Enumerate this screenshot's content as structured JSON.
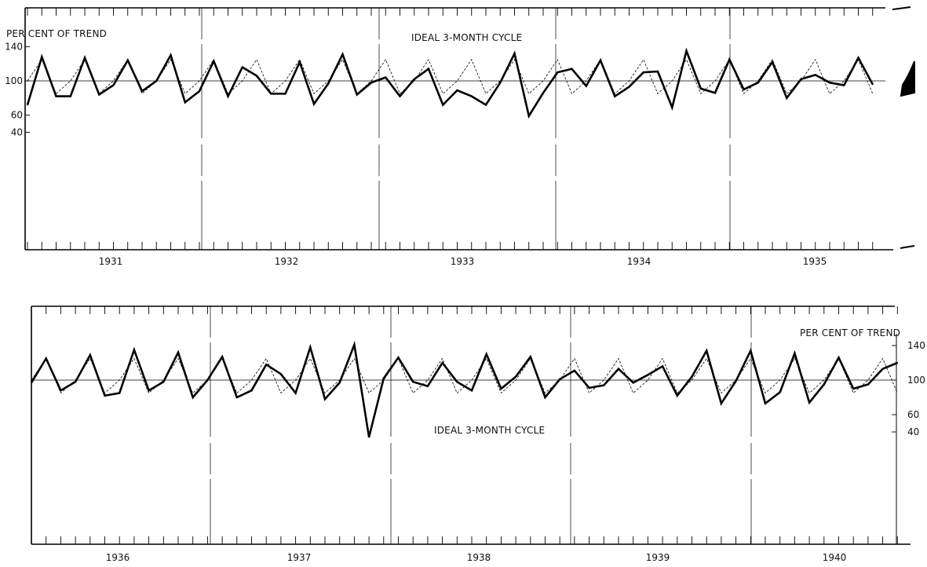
{
  "chart_data": [
    {
      "type": "line",
      "panel": "top",
      "ylabel": "PER CENT OF TREND",
      "annotation": "IDEAL 3-MONTH CYCLE",
      "y_ticks": [
        "140",
        "100",
        "60",
        "40"
      ],
      "year_labels": [
        "1931",
        "1932",
        "1933",
        "1934",
        "1935"
      ],
      "ylim": [
        40,
        140
      ],
      "series": [
        {
          "name": "",
          "style": "actual",
          "values": [
            72,
            128,
            82,
            82,
            127,
            84,
            95,
            124,
            88,
            100,
            130,
            75,
            88,
            123,
            82,
            116,
            106,
            85,
            85,
            122,
            73,
            97,
            131,
            84,
            98,
            104,
            82,
            102,
            114,
            72,
            89,
            82,
            72,
            98,
            132,
            59,
            86,
            110,
            114,
            94,
            124,
            82,
            93,
            110,
            111,
            69,
            135,
            91,
            86,
            125,
            90,
            98,
            122,
            80,
            102,
            107,
            98,
            95,
            127,
            96
          ]
        },
        {
          "name": "",
          "style": "ideal",
          "values": [
            100,
            125,
            85,
            100,
            125,
            85,
            100,
            125,
            85,
            100,
            125,
            85,
            100,
            125,
            85,
            100,
            125,
            85,
            100,
            125,
            85,
            100,
            125,
            85,
            100,
            125,
            85,
            100,
            125,
            85,
            100,
            125,
            85,
            100,
            125,
            85,
            100,
            125,
            85,
            100,
            125,
            85,
            100,
            125,
            85,
            100,
            125,
            85,
            100,
            125,
            85,
            100,
            125,
            85,
            100,
            125,
            85,
            100,
            125,
            85
          ]
        }
      ]
    },
    {
      "type": "line",
      "panel": "bottom",
      "ylabel": "PER CENT OF TREND",
      "annotation": "IDEAL 3-MONTH CYCLE",
      "y_ticks": [
        "140",
        "100",
        "60",
        "40"
      ],
      "year_labels": [
        "1936",
        "1937",
        "1938",
        "1939",
        "1940"
      ],
      "ylim": [
        40,
        140
      ],
      "series": [
        {
          "name": "",
          "style": "actual",
          "values": [
            97,
            125,
            88,
            98,
            129,
            82,
            85,
            135,
            88,
            98,
            132,
            80,
            100,
            127,
            80,
            88,
            118,
            107,
            85,
            138,
            78,
            97,
            141,
            34,
            102,
            126,
            98,
            93,
            120,
            98,
            88,
            130,
            90,
            104,
            127,
            80,
            101,
            111,
            91,
            94,
            113,
            97,
            106,
            116,
            82,
            104,
            134,
            73,
            99,
            134,
            73,
            86,
            131,
            74,
            95,
            126,
            90,
            95,
            113,
            120
          ]
        },
        {
          "name": "",
          "style": "ideal",
          "values": [
            100,
            125,
            85,
            100,
            125,
            85,
            100,
            125,
            85,
            100,
            125,
            85,
            100,
            125,
            85,
            100,
            125,
            85,
            100,
            125,
            85,
            100,
            125,
            85,
            100,
            125,
            85,
            100,
            125,
            85,
            100,
            125,
            85,
            100,
            125,
            85,
            100,
            125,
            85,
            100,
            125,
            85,
            100,
            125,
            85,
            100,
            125,
            85,
            100,
            125,
            85,
            100,
            125,
            85,
            100,
            125,
            85,
            100,
            125,
            85
          ]
        }
      ]
    }
  ]
}
